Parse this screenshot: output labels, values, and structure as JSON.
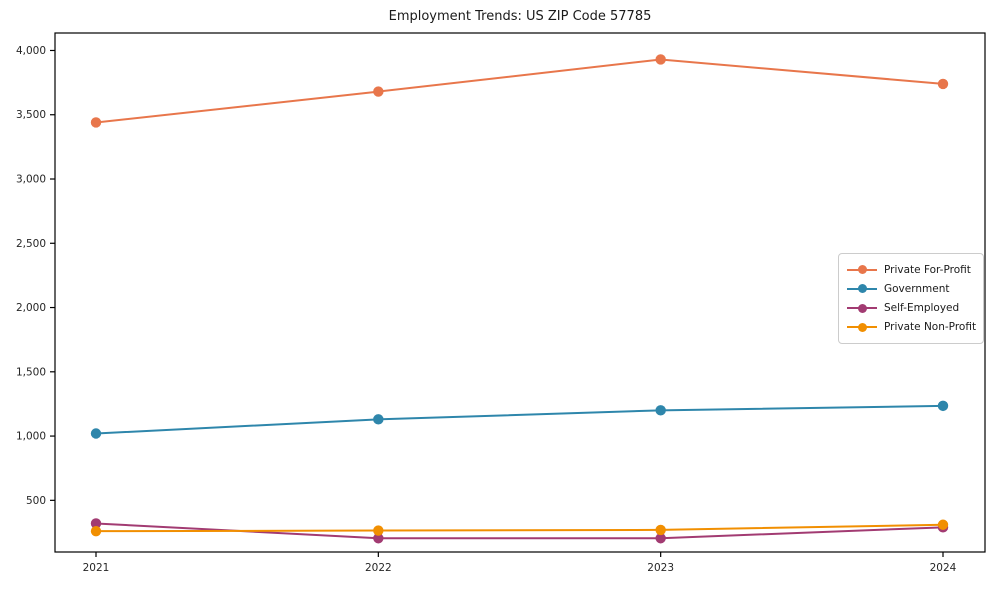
{
  "figure": {
    "title": "Employment Trends: US ZIP Code 57785"
  },
  "chart_data": {
    "type": "line",
    "title": "Employment Trends: US ZIP Code 57785",
    "xlabel": "",
    "ylabel": "",
    "x": [
      2021,
      2022,
      2023,
      2024
    ],
    "x_tick_labels": [
      "2021",
      "2022",
      "2023",
      "2024"
    ],
    "y_tick_values": [
      500,
      1000,
      1500,
      2000,
      2500,
      3000,
      3500,
      4000
    ],
    "y_tick_labels": [
      "500",
      "1,000",
      "1,500",
      "2,000",
      "2,500",
      "3,000",
      "3,500",
      "4,000"
    ],
    "ylim": [
      98,
      4136
    ],
    "grid": false,
    "legend_position": "center right",
    "marker": "o",
    "axis_color": "#000000",
    "text_color": "#262626",
    "series": [
      {
        "name": "Private For-Profit",
        "color": "#E8764B",
        "values": [
          3440,
          3680,
          3930,
          3740
        ]
      },
      {
        "name": "Government",
        "color": "#2E86AB",
        "values": [
          1020,
          1130,
          1200,
          1235
        ]
      },
      {
        "name": "Self-Employed",
        "color": "#A23B72",
        "values": [
          320,
          205,
          205,
          290
        ]
      },
      {
        "name": "Private Non-Profit",
        "color": "#F18F01",
        "values": [
          260,
          265,
          270,
          310
        ]
      }
    ]
  }
}
